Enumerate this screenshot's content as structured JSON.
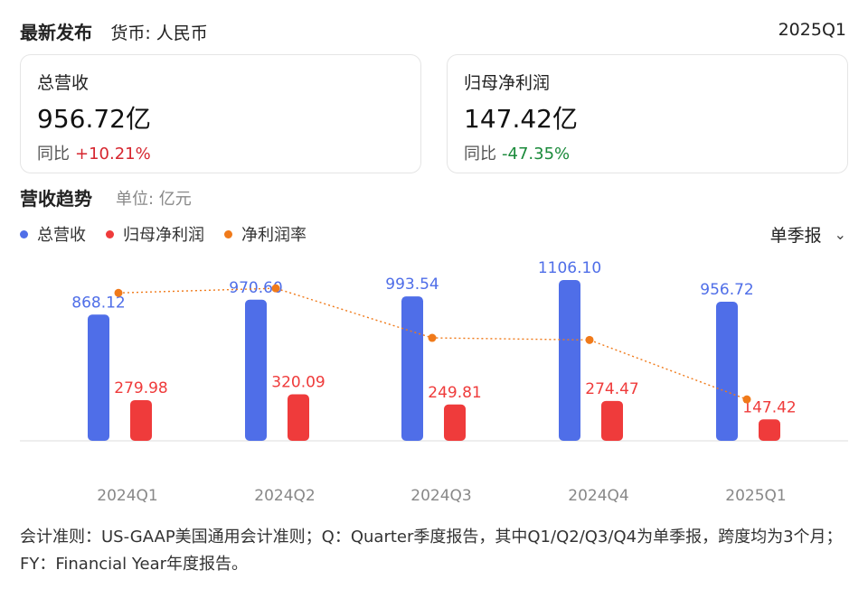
{
  "header": {
    "title": "最新发布",
    "currency": "货币: 人民币",
    "period": "2025Q1"
  },
  "cards": [
    {
      "label": "总营收",
      "value": "956.72亿",
      "yoy_label": "同比",
      "yoy": "+10.21%",
      "trend": "up"
    },
    {
      "label": "归母净利润",
      "value": "147.42亿",
      "yoy_label": "同比",
      "yoy": "-47.35%",
      "trend": "down"
    }
  ],
  "section": {
    "title": "营收趋势",
    "unit": "单位: 亿元"
  },
  "period_select": {
    "label": "单季报"
  },
  "colors": {
    "revenue": "#4f6ee8",
    "profit": "#ef3b3b",
    "margin": "#f07a1a",
    "up": "#d6262f",
    "down": "#1a8a3a"
  },
  "chart_data": {
    "type": "bar",
    "categories": [
      "2024Q1",
      "2024Q2",
      "2024Q3",
      "2024Q4",
      "2025Q1"
    ],
    "series": [
      {
        "name": "总营收",
        "type": "bar",
        "values": [
          868.12,
          970.6,
          993.54,
          1106.1,
          956.72
        ],
        "labels": [
          "868.12",
          "970.60",
          "993.54",
          "1106.10",
          "956.72"
        ]
      },
      {
        "name": "归母净利润",
        "type": "bar",
        "values": [
          279.98,
          320.09,
          249.81,
          274.47,
          147.42
        ],
        "labels": [
          "279.98",
          "320.09",
          "249.81",
          "274.47",
          "147.42"
        ]
      },
      {
        "name": "净利润率",
        "type": "line",
        "values": [
          32.25,
          32.98,
          25.14,
          24.81,
          15.41
        ]
      }
    ],
    "ylim": [
      0,
      1106.1
    ]
  },
  "footnote": "会计准则：US-GAAP美国通用会计准则；Q：Quarter季度报告，其中Q1/Q2/Q3/Q4为单季报，跨度均为3个月；FY：Financial Year年度报告。"
}
